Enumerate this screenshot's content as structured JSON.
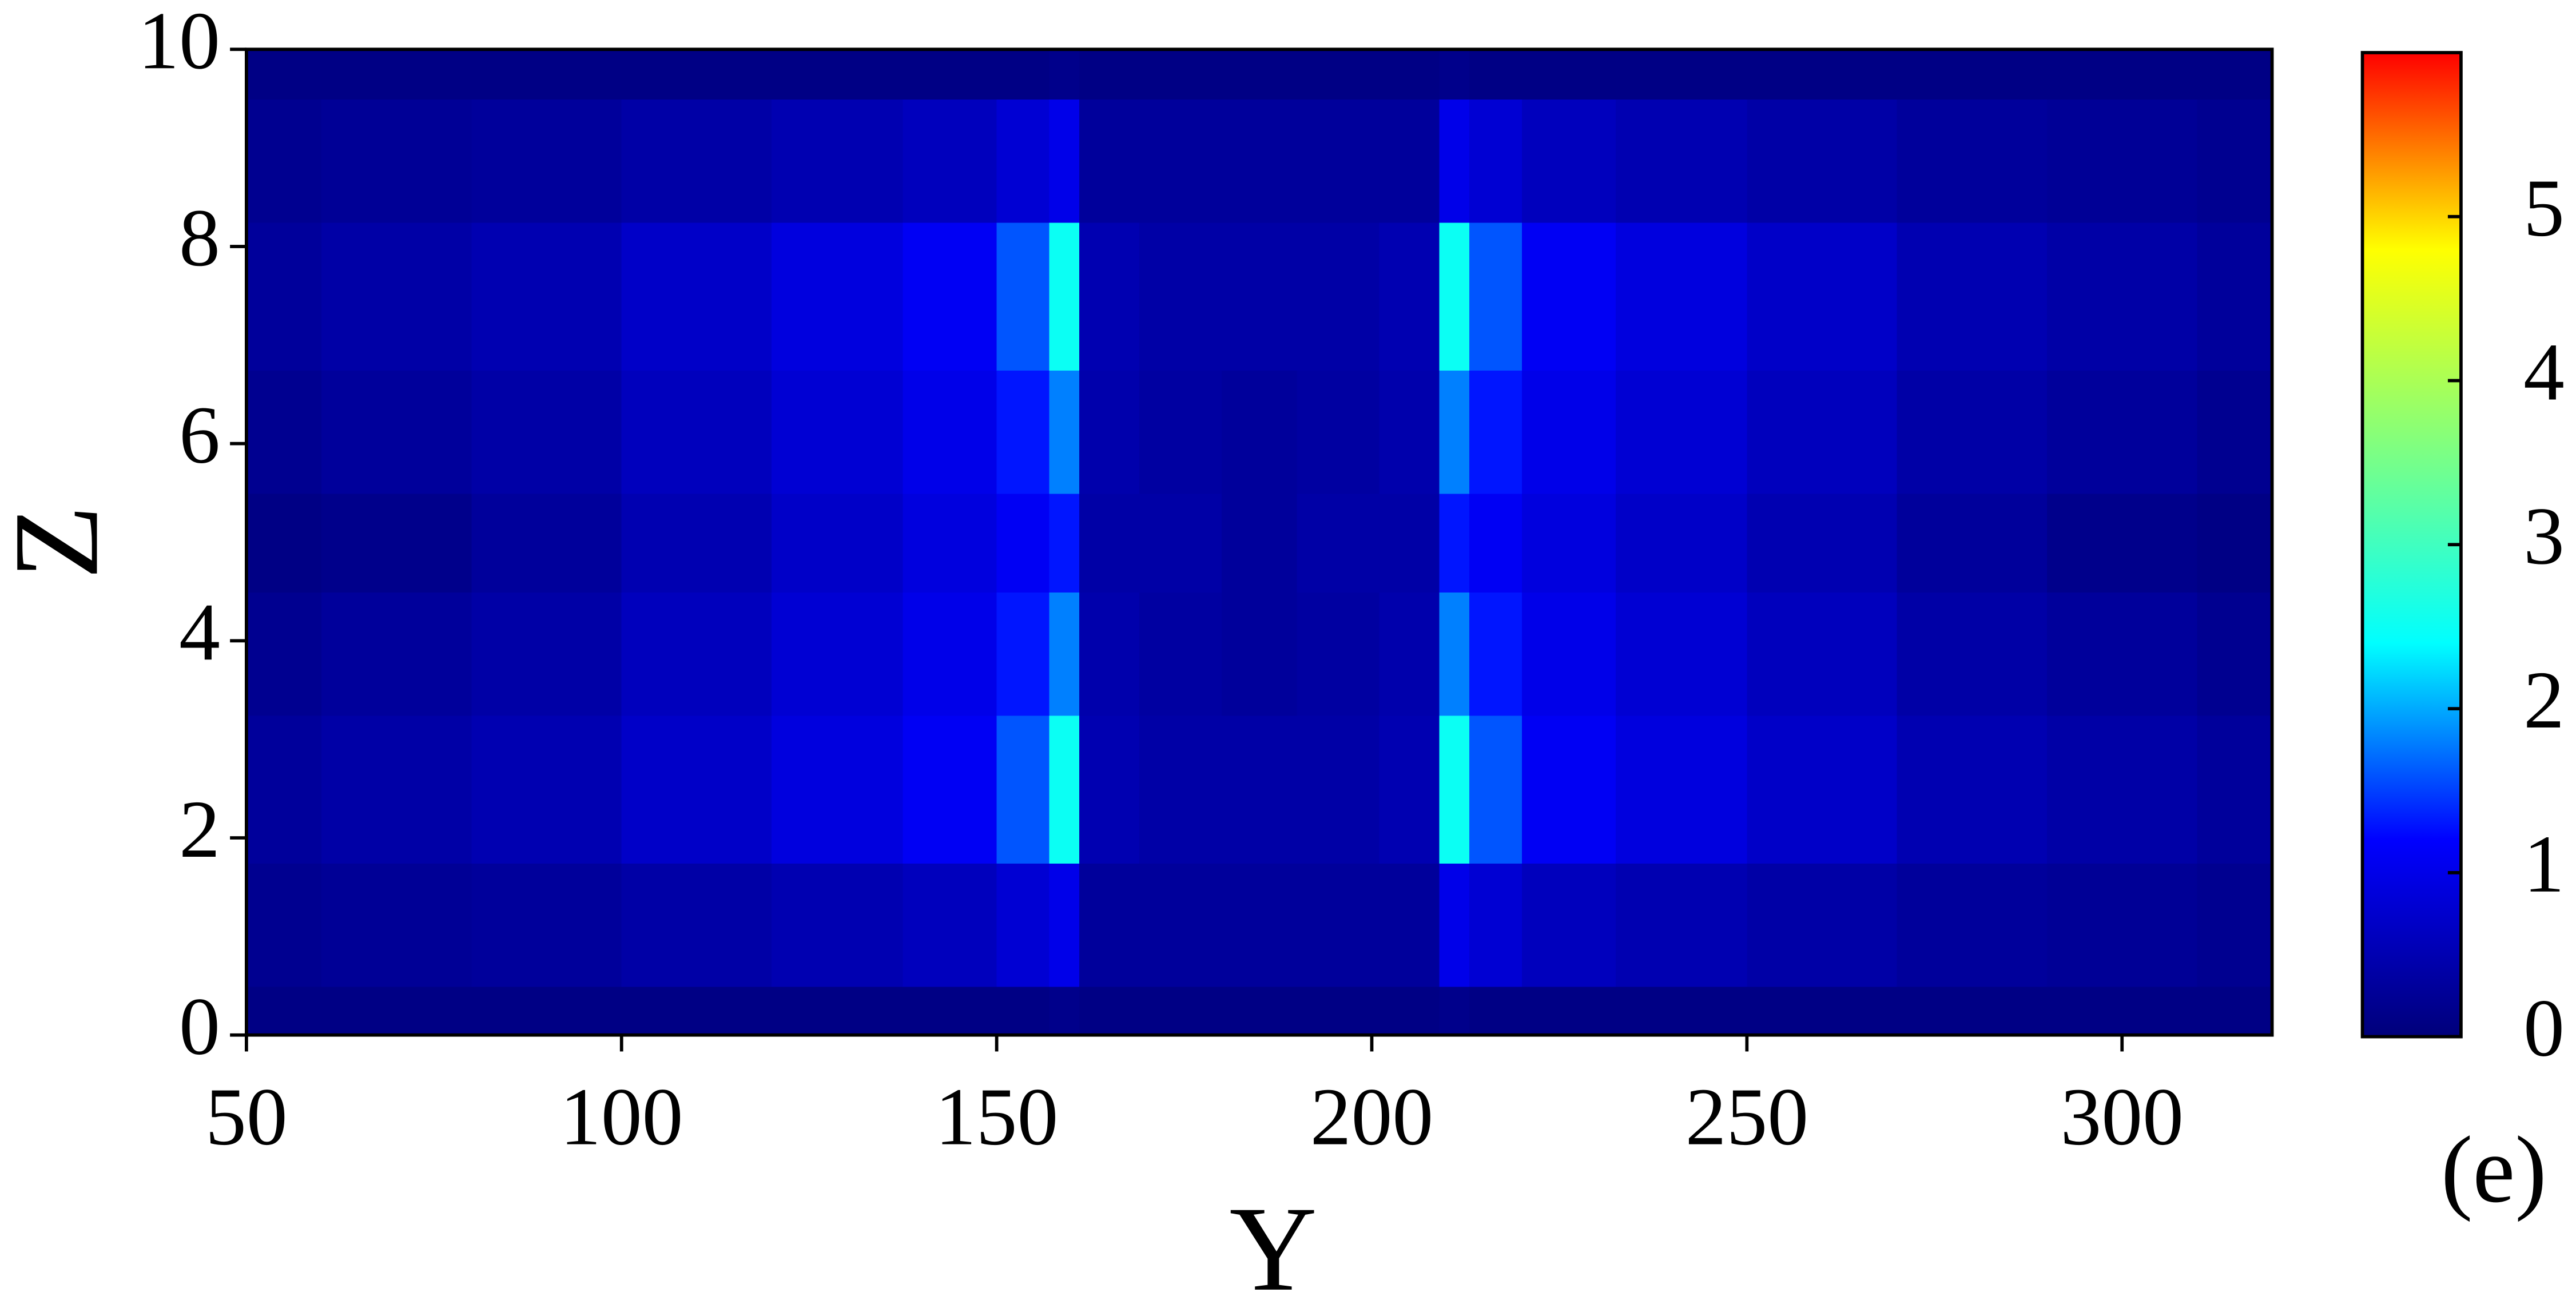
{
  "chart_data": {
    "type": "heatmap",
    "xlabel": "Y",
    "ylabel": "Z",
    "annotation": "(e)",
    "x": [
      50,
      70,
      90,
      110,
      130,
      145,
      155,
      159,
      163,
      175,
      185,
      195,
      207,
      211,
      215,
      225,
      240,
      260,
      280,
      300,
      320
    ],
    "y": [
      0,
      1,
      2.5,
      4,
      5,
      6,
      7.5,
      9,
      10
    ],
    "values": [
      [
        0.1,
        0.1,
        0.1,
        0.1,
        0.1,
        0.1,
        0.1,
        0.15,
        0.1,
        0.1,
        0.1,
        0.1,
        0.1,
        0.15,
        0.1,
        0.1,
        0.1,
        0.1,
        0.1,
        0.1,
        0.1
      ],
      [
        0.2,
        0.25,
        0.3,
        0.4,
        0.5,
        0.6,
        0.8,
        1.0,
        0.3,
        0.3,
        0.3,
        0.3,
        0.3,
        1.0,
        0.8,
        0.6,
        0.5,
        0.4,
        0.3,
        0.25,
        0.2
      ],
      [
        0.3,
        0.4,
        0.5,
        0.7,
        0.9,
        1.1,
        1.6,
        2.5,
        0.5,
        0.4,
        0.4,
        0.4,
        0.5,
        2.5,
        1.6,
        1.1,
        0.9,
        0.7,
        0.5,
        0.4,
        0.3
      ],
      [
        0.2,
        0.3,
        0.4,
        0.6,
        0.8,
        1.0,
        1.3,
        1.8,
        0.45,
        0.35,
        0.3,
        0.35,
        0.45,
        1.8,
        1.3,
        1.0,
        0.8,
        0.6,
        0.4,
        0.3,
        0.2
      ],
      [
        0.1,
        0.15,
        0.3,
        0.5,
        0.7,
        0.9,
        1.1,
        1.3,
        0.4,
        0.4,
        0.3,
        0.4,
        0.4,
        1.3,
        1.1,
        0.9,
        0.7,
        0.5,
        0.3,
        0.15,
        0.1
      ],
      [
        0.2,
        0.3,
        0.4,
        0.6,
        0.8,
        1.0,
        1.3,
        1.8,
        0.45,
        0.35,
        0.3,
        0.35,
        0.45,
        1.8,
        1.3,
        1.0,
        0.8,
        0.6,
        0.4,
        0.3,
        0.2
      ],
      [
        0.3,
        0.4,
        0.5,
        0.7,
        0.9,
        1.1,
        1.6,
        2.5,
        0.5,
        0.4,
        0.4,
        0.4,
        0.5,
        2.5,
        1.6,
        1.1,
        0.9,
        0.7,
        0.5,
        0.4,
        0.3
      ],
      [
        0.2,
        0.25,
        0.3,
        0.4,
        0.5,
        0.6,
        0.8,
        1.0,
        0.3,
        0.3,
        0.3,
        0.3,
        0.3,
        1.0,
        0.8,
        0.6,
        0.5,
        0.4,
        0.3,
        0.25,
        0.2
      ],
      [
        0.1,
        0.1,
        0.1,
        0.1,
        0.1,
        0.1,
        0.1,
        0.15,
        0.1,
        0.1,
        0.1,
        0.1,
        0.1,
        0.15,
        0.1,
        0.1,
        0.1,
        0.1,
        0.1,
        0.1,
        0.1
      ]
    ],
    "xlim": [
      50,
      320
    ],
    "ylim": [
      0,
      10
    ],
    "xticks": [
      50,
      100,
      150,
      200,
      250,
      300
    ],
    "yticks": [
      0,
      2,
      4,
      6,
      8,
      10
    ],
    "clim": [
      0,
      6
    ],
    "colorbar_ticks": [
      0,
      1,
      2,
      3,
      4,
      5
    ],
    "colormap": [
      "#00007a",
      "#0000ff",
      "#00ffff",
      "#80ff80",
      "#ffff00",
      "#ff0000"
    ]
  }
}
